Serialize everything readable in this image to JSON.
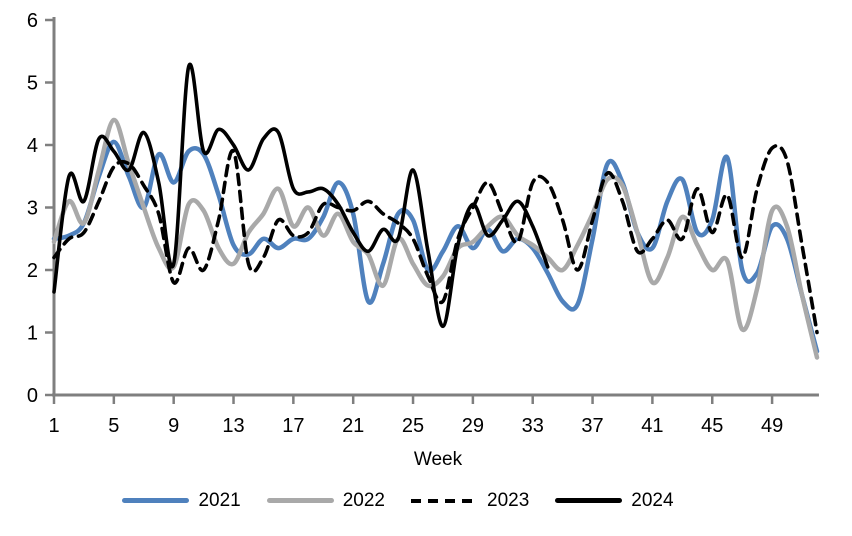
{
  "chart_data": {
    "type": "line",
    "title": "",
    "xlabel": "Week",
    "ylabel": "",
    "xlim": [
      1,
      52
    ],
    "ylim": [
      0,
      6
    ],
    "x_ticks": [
      1,
      5,
      9,
      13,
      17,
      21,
      25,
      29,
      33,
      37,
      41,
      45,
      49
    ],
    "y_ticks": [
      0,
      1,
      2,
      3,
      4,
      5,
      6
    ],
    "grid": false,
    "legend_position": "bottom",
    "axis_color": "#7F7F7F",
    "text_color": "#000000",
    "x": [
      1,
      2,
      3,
      4,
      5,
      6,
      7,
      8,
      9,
      10,
      11,
      12,
      13,
      14,
      15,
      16,
      17,
      18,
      19,
      20,
      21,
      22,
      23,
      24,
      25,
      26,
      27,
      28,
      29,
      30,
      31,
      32,
      33,
      34,
      35,
      36,
      37,
      38,
      39,
      40,
      41,
      42,
      43,
      44,
      45,
      46,
      47,
      48,
      49,
      50,
      51,
      52
    ],
    "series": [
      {
        "name": "2021",
        "color": "#4F81BD",
        "line_style": "solid",
        "values": [
          2.5,
          2.55,
          2.75,
          3.5,
          4.05,
          3.5,
          3.0,
          3.85,
          3.4,
          3.9,
          3.85,
          3.2,
          2.4,
          2.25,
          2.5,
          2.35,
          2.5,
          2.5,
          2.85,
          3.4,
          2.9,
          1.5,
          2.1,
          2.9,
          2.8,
          2.0,
          2.3,
          2.7,
          2.35,
          2.65,
          2.3,
          2.5,
          2.35,
          1.95,
          1.5,
          1.45,
          2.5,
          3.7,
          3.4,
          2.6,
          2.35,
          3.1,
          3.45,
          2.6,
          2.8,
          3.8,
          2.0,
          1.95,
          2.7,
          2.5,
          1.6,
          0.7
        ]
      },
      {
        "name": "2022",
        "color": "#A9A9A9",
        "line_style": "solid",
        "values": [
          2.45,
          3.1,
          2.75,
          3.6,
          4.4,
          3.7,
          3.0,
          2.35,
          2.05,
          3.05,
          2.95,
          2.35,
          2.1,
          2.6,
          2.9,
          3.3,
          2.7,
          3.0,
          2.55,
          2.9,
          2.45,
          2.25,
          1.75,
          2.5,
          2.1,
          1.75,
          1.9,
          2.35,
          2.45,
          2.7,
          2.85,
          2.55,
          2.4,
          2.2,
          2.0,
          2.4,
          2.9,
          3.45,
          3.35,
          2.6,
          1.8,
          2.2,
          2.85,
          2.4,
          2.0,
          2.15,
          1.05,
          1.7,
          2.95,
          2.7,
          1.6,
          0.6
        ]
      },
      {
        "name": "2023",
        "color": "#000000",
        "line_style": "dashed",
        "values": [
          2.2,
          2.5,
          2.6,
          3.1,
          3.65,
          3.7,
          3.35,
          2.9,
          1.8,
          2.35,
          2.0,
          2.8,
          3.9,
          2.1,
          2.2,
          2.8,
          2.55,
          2.6,
          3.05,
          3.0,
          2.95,
          3.1,
          2.9,
          2.75,
          2.5,
          1.9,
          1.5,
          2.5,
          3.0,
          3.4,
          2.9,
          2.45,
          3.4,
          3.4,
          2.8,
          2.0,
          2.8,
          3.55,
          3.1,
          2.3,
          2.5,
          2.8,
          2.5,
          3.3,
          2.6,
          3.2,
          2.2,
          3.3,
          3.95,
          3.75,
          2.4,
          1.0
        ]
      },
      {
        "name": "2024",
        "color": "#000000",
        "line_style": "solid",
        "values": [
          1.65,
          3.5,
          3.1,
          4.1,
          3.9,
          3.6,
          4.2,
          3.4,
          2.1,
          5.25,
          3.9,
          4.25,
          4.0,
          3.6,
          4.1,
          4.2,
          3.3,
          3.25,
          3.3,
          3.05,
          2.6,
          2.3,
          2.65,
          2.5,
          3.6,
          2.3,
          1.1,
          2.4,
          3.05,
          2.55,
          2.8,
          3.1,
          2.7,
          2.05
        ]
      }
    ]
  }
}
